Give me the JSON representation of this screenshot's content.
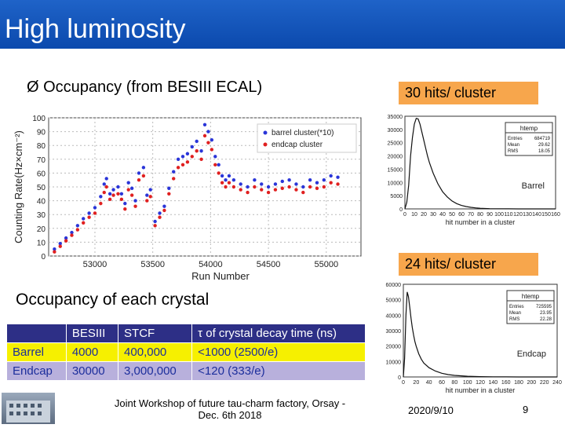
{
  "slide": {
    "title": "High luminosity",
    "bullet_marker": "Ø",
    "bullet_text": "Occupancy (from BESIII ECAL)",
    "badge_top": "30 hits/ cluster",
    "badge_bottom": "24 hits/ cluster",
    "occupancy_heading": "Occupancy of each crystal",
    "footer_text_line1": "Joint Workshop of future tau-charm factory, Orsay -",
    "footer_text_line2": "Dec. 6th 2018",
    "date": "2020/9/10",
    "page_number": "9"
  },
  "table": {
    "headers": [
      "",
      "BESIII",
      "STCF",
      "τ of crystal decay time (ns)"
    ],
    "rows": [
      [
        "Barrel",
        "4000",
        "400,000",
        "<1000 (2500/e)"
      ],
      [
        "Endcap",
        "30000",
        "3,000,000",
        "<120 (333/e)"
      ]
    ]
  },
  "colors": {
    "title_bar": "#1561c4",
    "badge": "#f7a64c",
    "barrel_series": "#2a35d8",
    "endcap_series": "#e02020"
  },
  "icons": {
    "logo": "building-photo-icon"
  },
  "chart_data": [
    {
      "type": "scatter",
      "title": "",
      "xlabel": "Run Number",
      "ylabel": "Counting Rate(Hz×cm⁻²)",
      "xlim": [
        52600,
        55300
      ],
      "ylim": [
        0,
        100
      ],
      "xticks": [
        53000,
        53500,
        54000,
        54500,
        55000
      ],
      "yticks": [
        0,
        10,
        20,
        30,
        40,
        50,
        60,
        70,
        80,
        90,
        100
      ],
      "legend_position": "top-right",
      "series": [
        {
          "name": "barrel cluster(*10)",
          "color": "#2a35d8",
          "x": [
            52650,
            52700,
            52750,
            52800,
            52850,
            52900,
            52950,
            53000,
            53050,
            53080,
            53100,
            53130,
            53160,
            53200,
            53230,
            53260,
            53290,
            53320,
            53350,
            53380,
            53420,
            53450,
            53480,
            53520,
            53560,
            53600,
            53640,
            53680,
            53720,
            53760,
            53800,
            53840,
            53880,
            53920,
            53950,
            53980,
            54010,
            54040,
            54070,
            54100,
            54130,
            54160,
            54200,
            54260,
            54320,
            54380,
            54440,
            54500,
            54560,
            54620,
            54680,
            54740,
            54800,
            54860,
            54920,
            54980,
            55040,
            55100
          ],
          "y": [
            5,
            9,
            13,
            17,
            22,
            27,
            31,
            35,
            43,
            52,
            56,
            45,
            48,
            50,
            45,
            38,
            53,
            49,
            40,
            60,
            64,
            44,
            48,
            25,
            31,
            36,
            49,
            61,
            70,
            72,
            74,
            79,
            83,
            76,
            95,
            90,
            84,
            72,
            66,
            58,
            55,
            58,
            55,
            52,
            50,
            55,
            52,
            50,
            52,
            54,
            55,
            52,
            50,
            55,
            53,
            55,
            58,
            57
          ]
        },
        {
          "name": "endcap cluster",
          "color": "#e02020",
          "x": [
            52650,
            52700,
            52750,
            52800,
            52850,
            52900,
            52950,
            53000,
            53050,
            53080,
            53100,
            53130,
            53160,
            53200,
            53230,
            53260,
            53290,
            53320,
            53350,
            53380,
            53420,
            53450,
            53480,
            53520,
            53560,
            53600,
            53640,
            53680,
            53720,
            53760,
            53800,
            53840,
            53880,
            53920,
            53950,
            53980,
            54010,
            54040,
            54070,
            54100,
            54130,
            54160,
            54200,
            54260,
            54320,
            54380,
            54440,
            54500,
            54560,
            54620,
            54680,
            54740,
            54800,
            54860,
            54920,
            54980,
            55040,
            55100
          ],
          "y": [
            3,
            7,
            11,
            15,
            19,
            24,
            28,
            31,
            38,
            46,
            50,
            41,
            44,
            45,
            41,
            34,
            48,
            44,
            36,
            55,
            58,
            40,
            43,
            22,
            28,
            33,
            45,
            56,
            64,
            66,
            68,
            72,
            76,
            70,
            87,
            82,
            77,
            66,
            60,
            53,
            50,
            53,
            50,
            48,
            46,
            50,
            48,
            46,
            48,
            49,
            50,
            48,
            46,
            50,
            49,
            50,
            53,
            52
          ]
        }
      ]
    },
    {
      "type": "line",
      "title": "htemp",
      "label": "Barrel",
      "xlabel": "hit number in a cluster",
      "xlim": [
        0,
        160
      ],
      "ylim": [
        0,
        35000
      ],
      "xticks": [
        0,
        10,
        20,
        30,
        40,
        50,
        60,
        70,
        80,
        90,
        100,
        110,
        120,
        130,
        140,
        150,
        160
      ],
      "yticks": [
        0,
        5000,
        10000,
        15000,
        20000,
        25000,
        30000,
        35000
      ],
      "stats": {
        "Entries": "684719",
        "Mean": "29.62",
        "RMS": "18.05"
      },
      "x": [
        0,
        2,
        4,
        6,
        8,
        10,
        12,
        14,
        16,
        18,
        20,
        22,
        24,
        26,
        30,
        35,
        40,
        45,
        50,
        55,
        60,
        65,
        70,
        75,
        80,
        90,
        100,
        110,
        120,
        130,
        140,
        150,
        160
      ],
      "y": [
        0,
        2500,
        9000,
        20000,
        27000,
        32000,
        34200,
        34000,
        32000,
        29000,
        26000,
        23000,
        20000,
        17500,
        13500,
        9500,
        6500,
        4500,
        3000,
        2000,
        1300,
        900,
        600,
        400,
        250,
        100,
        50,
        20,
        10,
        5,
        0,
        0,
        0
      ]
    },
    {
      "type": "line",
      "title": "htemp",
      "label": "Endcap",
      "xlabel": "hit number in a cluster",
      "xlim": [
        0,
        240
      ],
      "ylim": [
        0,
        60000
      ],
      "xticks": [
        0,
        20,
        40,
        60,
        80,
        100,
        120,
        140,
        160,
        180,
        200,
        220,
        240
      ],
      "yticks": [
        0,
        10000,
        20000,
        30000,
        40000,
        50000,
        60000
      ],
      "stats": {
        "Entries": "725595",
        "Mean": "23.95",
        "RMS": "22.28"
      },
      "x": [
        0,
        2,
        4,
        6,
        8,
        10,
        12,
        14,
        16,
        18,
        20,
        24,
        28,
        32,
        40,
        50,
        60,
        70,
        80,
        100,
        120,
        140,
        160,
        180,
        200,
        220,
        240
      ],
      "y": [
        0,
        12000,
        40000,
        55000,
        52000,
        45000,
        38000,
        32000,
        27000,
        23000,
        20000,
        15000,
        11500,
        9000,
        6000,
        3800,
        2400,
        1500,
        1000,
        450,
        200,
        100,
        50,
        20,
        10,
        0,
        0
      ]
    }
  ]
}
